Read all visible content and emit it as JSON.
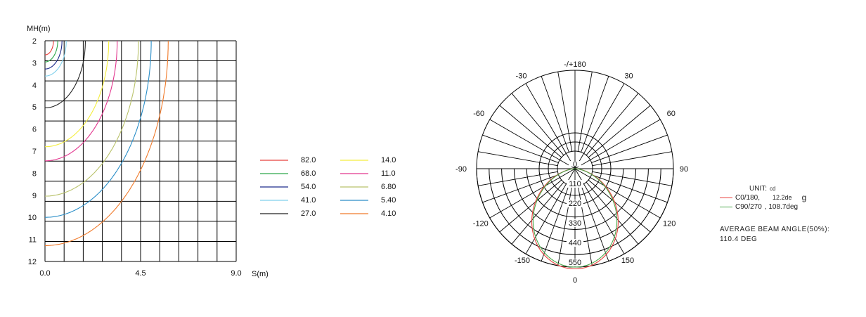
{
  "chart_data": [
    {
      "type": "isolux",
      "ylabel": "MH(m)",
      "xlabel": "S(m)",
      "xlim": [
        0,
        9
      ],
      "ylim": [
        2,
        12
      ],
      "x_ticks": [
        "0.0",
        "4.5",
        "9.0"
      ],
      "y_ticks": [
        "2",
        "3",
        "4",
        "5",
        "6",
        "7",
        "8",
        "9",
        "10",
        "11",
        "12"
      ],
      "legend_placement": "right",
      "series": [
        {
          "name": "82.0",
          "color": "#e8403c",
          "radius_at_mh2": 0.4
        },
        {
          "name": "68.0",
          "color": "#2ea84a",
          "radius_at_mh2": 0.6
        },
        {
          "name": "54.0",
          "color": "#1c2a8a",
          "radius_at_mh2": 0.8
        },
        {
          "name": "41.0",
          "color": "#7fd0ec",
          "radius_at_mh2": 1.0
        },
        {
          "name": "27.0",
          "color": "#222222",
          "radius_at_mh2": 1.9
        },
        {
          "name": "14.0",
          "color": "#f4ee3e",
          "radius_at_mh2": 3.0
        },
        {
          "name": "11.0",
          "color": "#e2368e",
          "radius_at_mh2": 3.4
        },
        {
          "name": "6.80",
          "color": "#b9c26a",
          "radius_at_mh2": 4.4
        },
        {
          "name": "5.40",
          "color": "#2a8ec8",
          "radius_at_mh2": 5.0
        },
        {
          "name": "4.10",
          "color": "#f07a2a",
          "radius_at_mh2": 5.8
        }
      ]
    },
    {
      "type": "polar",
      "angle_labels": [
        "-/+180",
        "-150",
        "150",
        "-120",
        "120",
        "-90",
        "90",
        "-60",
        "60",
        "-30",
        "30",
        "0"
      ],
      "radial_ticks": [
        "0",
        "110",
        "220",
        "330",
        "440",
        "550"
      ],
      "rmax": 550,
      "series": [
        {
          "name": "C0/180",
          "color": "#e8403c",
          "peak": 560,
          "exponent": 1.5
        },
        {
          "name": "C90/270",
          "color": "#4aa84a",
          "peak": 550,
          "exponent": 1.55
        }
      ]
    }
  ],
  "unit": {
    "label": "UNIT:",
    "value": "cd",
    "rows": [
      {
        "color": "#e8403c",
        "name": "C0/180,",
        "value": "12.2de",
        "suffix": "g"
      },
      {
        "color": "#4aa84a",
        "name": "C90/270",
        "value": ", 108.7deg",
        "suffix": ""
      }
    ]
  },
  "average": {
    "line1": "AVERAGE  BEAM  ANGLE(50%):",
    "line2": "110.4  DEG"
  }
}
